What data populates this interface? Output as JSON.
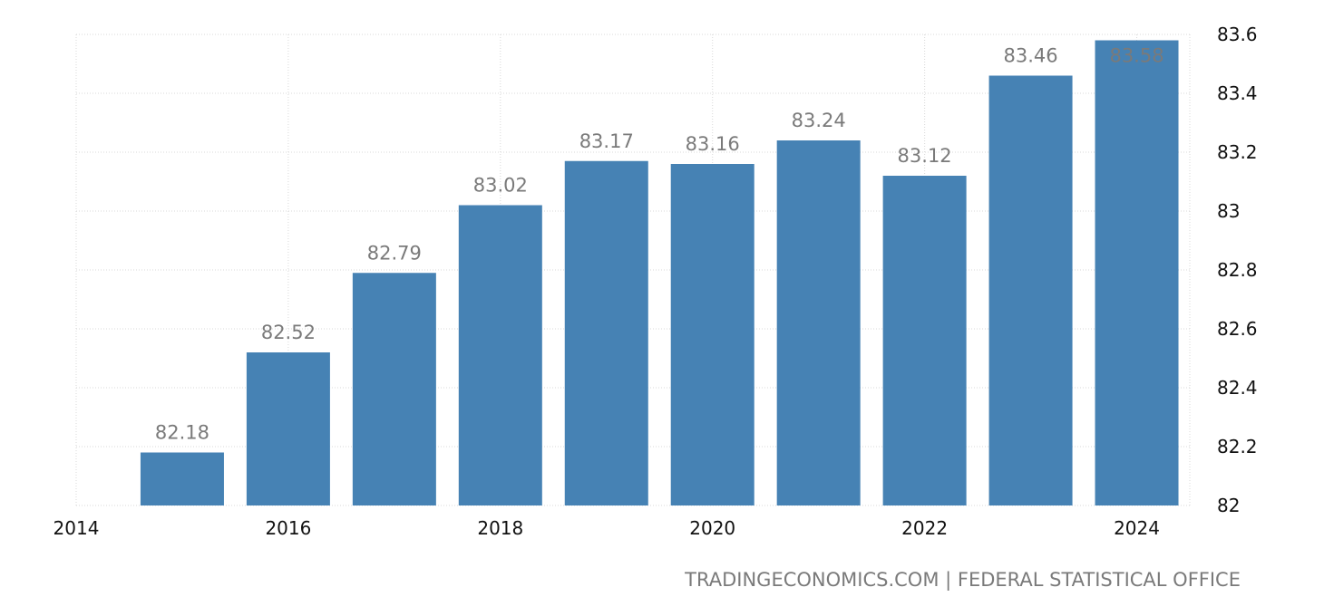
{
  "chart_data": {
    "type": "bar",
    "categories": [
      "2015",
      "2016",
      "2017",
      "2018",
      "2019",
      "2020",
      "2021",
      "2022",
      "2023",
      "2024"
    ],
    "x": [
      2015,
      2016,
      2017,
      2018,
      2019,
      2020,
      2021,
      2022,
      2023,
      2024
    ],
    "values": [
      82.18,
      82.52,
      82.79,
      83.02,
      83.17,
      83.16,
      83.24,
      83.12,
      83.46,
      83.58
    ],
    "data_labels": [
      "82.18",
      "82.52",
      "82.79",
      "83.02",
      "83.17",
      "83.16",
      "83.24",
      "83.12",
      "83.46",
      "83.58"
    ],
    "xlim": [
      2014,
      2024.5
    ],
    "ylim": [
      82,
      83.6
    ],
    "x_ticks": [
      2014,
      2016,
      2018,
      2020,
      2022,
      2024
    ],
    "x_tick_labels": [
      "2014",
      "2016",
      "2018",
      "2020",
      "2022",
      "2024"
    ],
    "y_ticks": [
      82,
      82.2,
      82.4,
      82.6,
      82.8,
      83,
      83.2,
      83.4,
      83.6
    ],
    "y_tick_labels": [
      "82",
      "82.2",
      "82.4",
      "82.6",
      "82.8",
      "83",
      "83.2",
      "83.4",
      "83.6"
    ],
    "y_axis_side": "right",
    "grid": true,
    "legend": "none",
    "bar_color": "#4682b4",
    "label_color": "#7a7a7a",
    "grid_color": "#d9d9d9"
  },
  "source": {
    "credit": "TRADINGECONOMICS.COM | FEDERAL STATISTICAL OFFICE"
  }
}
